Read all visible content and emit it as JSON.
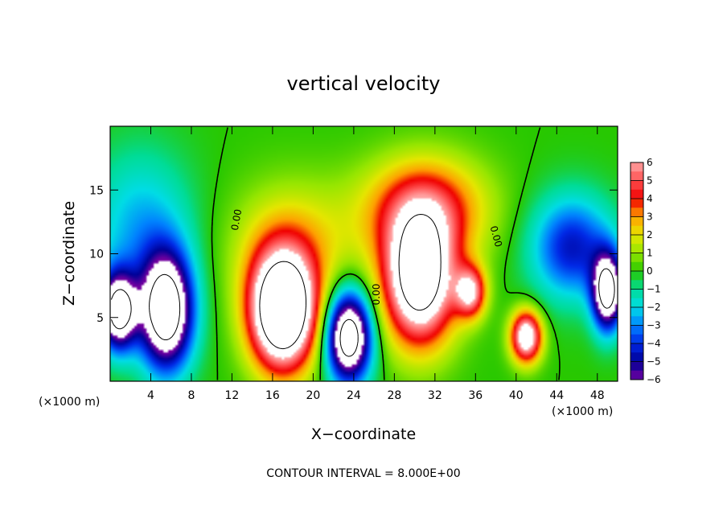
{
  "chart_data": {
    "type": "heatmap",
    "title": "vertical velocity",
    "xlabel": "X−coordinate",
    "ylabel": "Z−coordinate",
    "x_unit_label": "(×1000 m)",
    "x_unit_label_right": "(×1000 m)",
    "x_ticks": [
      "4",
      "8",
      "12",
      "16",
      "20",
      "24",
      "28",
      "32",
      "36",
      "40",
      "44",
      "48"
    ],
    "y_ticks": [
      "5",
      "10",
      "15"
    ],
    "xlim": [
      0,
      50
    ],
    "ylim": [
      0,
      20
    ],
    "footer": "CONTOUR INTERVAL = 8.000E+00",
    "contour_labels": [
      "0.00",
      "0.00",
      "0.00"
    ],
    "colorbar": {
      "ticks": [
        "6",
        "5",
        "4",
        "3",
        "2",
        "1",
        "0",
        "−1",
        "−2",
        "−3",
        "−4",
        "−5",
        "−6"
      ],
      "range": [
        -6,
        6
      ]
    },
    "features": [
      {
        "kind": "downdraft",
        "x": 0.8,
        "z": 5.5,
        "amplitude": -9,
        "sx": 1.8,
        "sz": 3.0
      },
      {
        "kind": "downdraft",
        "x": 5.5,
        "z": 5.5,
        "amplitude": -10,
        "sx": 2.6,
        "sz": 4.5
      },
      {
        "kind": "downdraft",
        "x": 3.0,
        "z": 12.0,
        "amplitude": -2.5,
        "sx": 5.0,
        "sz": 6.0
      },
      {
        "kind": "updraft",
        "x": 17.0,
        "z": 5.5,
        "amplitude": 12,
        "sx": 3.2,
        "sz": 4.5
      },
      {
        "kind": "updraft",
        "x": 18.0,
        "z": 10.5,
        "amplitude": 2.5,
        "sx": 6.0,
        "sz": 5.0
      },
      {
        "kind": "downdraft",
        "x": 23.5,
        "z": 3.5,
        "amplitude": -10,
        "sx": 2.2,
        "sz": 3.5
      },
      {
        "kind": "updraft",
        "x": 30.5,
        "z": 8.0,
        "amplitude": 10,
        "sx": 3.5,
        "sz": 5.0
      },
      {
        "kind": "updraft",
        "x": 31.0,
        "z": 13.5,
        "amplitude": 4.5,
        "sx": 6.0,
        "sz": 4.0
      },
      {
        "kind": "updraft",
        "x": 35.5,
        "z": 7.0,
        "amplitude": 6,
        "sx": 1.5,
        "sz": 2.0
      },
      {
        "kind": "updraft",
        "x": 41.0,
        "z": 3.5,
        "amplitude": 8,
        "sx": 1.5,
        "sz": 2.0
      },
      {
        "kind": "downdraft",
        "x": 45.5,
        "z": 10.5,
        "amplitude": -4.5,
        "sx": 4.0,
        "sz": 4.0
      },
      {
        "kind": "downdraft",
        "x": 49.0,
        "z": 7.0,
        "amplitude": -9,
        "sx": 1.5,
        "sz": 3.0
      }
    ],
    "grid": false,
    "legend": "right"
  }
}
